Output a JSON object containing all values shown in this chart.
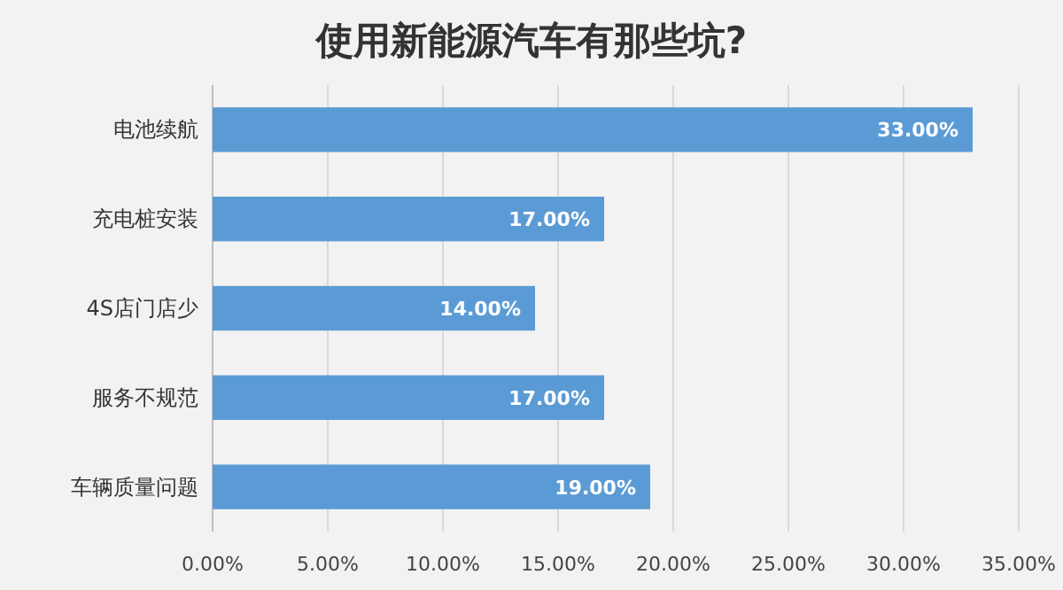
{
  "chart_data": {
    "type": "bar",
    "orientation": "horizontal",
    "title": "使用新能源汽车有那些坑?",
    "categories": [
      "电池续航",
      "充电桩安装",
      "4S店门店少",
      "服务不规范",
      "车辆质量问题"
    ],
    "values": [
      33,
      17,
      14,
      17,
      19
    ],
    "value_labels": [
      "33.00%",
      "17.00%",
      "14.00%",
      "17.00%",
      "19.00%"
    ],
    "color": "#5b9bd5",
    "xlim": [
      0,
      35
    ],
    "xticks": [
      {
        "value": 0,
        "label": "0.00%"
      },
      {
        "value": 5,
        "label": "5.00%"
      },
      {
        "value": 10,
        "label": "10.00%"
      },
      {
        "value": 15,
        "label": "15.00%"
      },
      {
        "value": 20,
        "label": "20.00%"
      },
      {
        "value": 25,
        "label": "25.00%"
      },
      {
        "value": 30,
        "label": "30.00%"
      },
      {
        "value": 35,
        "label": "35.00%"
      }
    ],
    "grid": "x"
  }
}
